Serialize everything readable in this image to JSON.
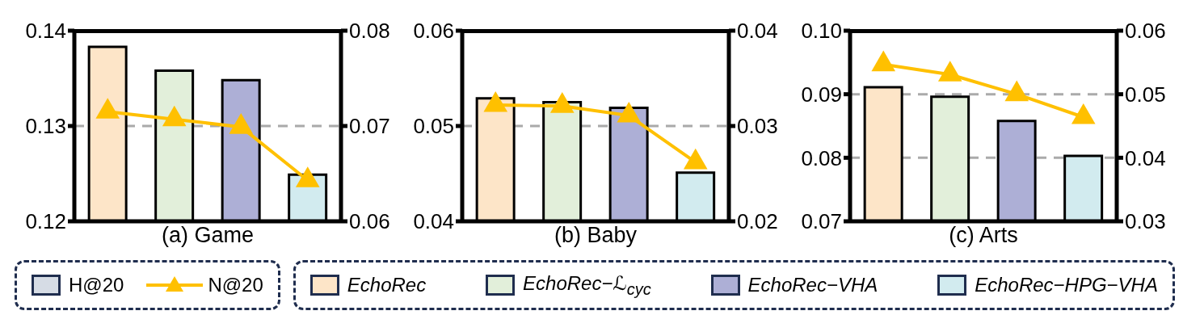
{
  "chart_data": [
    {
      "type": "bar",
      "stacked": true,
      "xlabel": "(a) Game",
      "categories": [
        null,
        null,
        null,
        null
      ],
      "tick_labels": "y",
      "grid": "y",
      "legend": "bottom",
      "ylim": [
        0.12,
        0.14
      ],
      "yticks": [
        0.12,
        0.13,
        0.14
      ],
      "y2lim": [
        0.06,
        0.08
      ],
      "y2ticks": [
        0.06,
        0.07,
        0.08
      ],
      "series": [
        {
          "name": "H@20",
          "color": "#d6dce5",
          "values": [
            null,
            null,
            null,
            null
          ]
        },
        {
          "name": "EchoRec",
          "color": "#fde5c8",
          "values": [
            0.1383,
            null,
            null,
            null
          ]
        },
        {
          "name": "EchoRec−ℒ$_{cyc}$",
          "color": "#e2efda",
          "values": [
            null,
            0.1358,
            null,
            null
          ]
        },
        {
          "name": "EchoRec−VHA",
          "color": "#adafd6",
          "values": [
            null,
            null,
            0.1348,
            null
          ]
        },
        {
          "name": "EchoRec−HPG−VHA",
          "color": "#d2ebef",
          "values": [
            null,
            null,
            null,
            0.1249
          ]
        },
        {
          "name": "N@20",
          "type": "line",
          "axis": "y2",
          "color": "#ffc000",
          "marker": "triangle",
          "values": [
            0.0715,
            0.0707,
            0.0699,
            0.0643
          ]
        }
      ]
    },
    {
      "type": "bar",
      "stacked": true,
      "xlabel": "(b) Baby",
      "categories": [
        null,
        null,
        null,
        null
      ],
      "tick_labels": "y",
      "grid": "y",
      "ylim": [
        0.04,
        0.06
      ],
      "yticks": [
        0.04,
        0.05,
        0.06
      ],
      "y2lim": [
        0.02,
        0.04
      ],
      "y2ticks": [
        0.02,
        0.03,
        0.04
      ],
      "series": [
        {
          "color": "#fde5c8",
          "values": [
            0.0529,
            null,
            null,
            null
          ]
        },
        {
          "color": "#e2efda",
          "values": [
            null,
            0.0525,
            null,
            null
          ]
        },
        {
          "color": "#adafd6",
          "values": [
            null,
            null,
            0.0519,
            null
          ]
        },
        {
          "color": "#d2ebef",
          "values": [
            null,
            null,
            null,
            0.0451
          ]
        },
        {
          "type": "line",
          "axis": "y2",
          "color": "#ffc000",
          "marker": "triangle",
          "values": [
            0.0322,
            0.0321,
            0.0311,
            0.0262
          ]
        }
      ]
    },
    {
      "type": "bar",
      "stacked": true,
      "xlabel": "(c) Arts",
      "categories": [
        null,
        null,
        null,
        null
      ],
      "tick_labels": "y",
      "grid": "y",
      "ylim": [
        0.07,
        0.1
      ],
      "yticks": [
        0.07,
        0.08,
        0.09,
        {
          "value": 0.1,
          "label": "0.10"
        }
      ],
      "y2lim": [
        0.03,
        0.06
      ],
      "y2ticks": [
        0.03,
        0.04,
        0.05,
        0.06
      ],
      "series": [
        {
          "color": "#fde5c8",
          "values": [
            0.0911,
            null,
            null,
            null
          ]
        },
        {
          "color": "#e2efda",
          "values": [
            null,
            0.0896,
            null,
            null
          ]
        },
        {
          "color": "#adafd6",
          "values": [
            null,
            null,
            0.0858,
            null
          ]
        },
        {
          "color": "#d2ebef",
          "values": [
            null,
            null,
            null,
            0.0803
          ]
        },
        {
          "type": "line",
          "axis": "y2",
          "color": "#ffc000",
          "marker": "triangle",
          "values": [
            0.0547,
            0.0531,
            0.05,
            0.0464
          ]
        }
      ]
    }
  ]
}
